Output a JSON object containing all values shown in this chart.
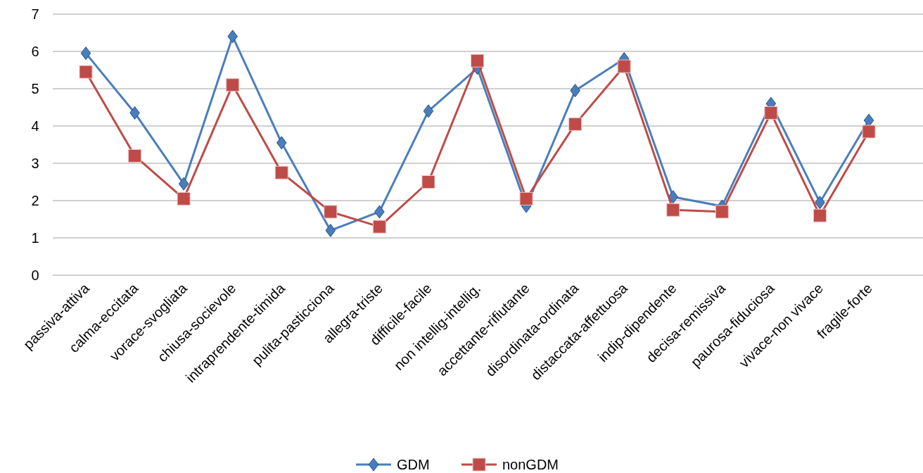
{
  "chart_data": {
    "type": "line",
    "categories": [
      "passiva-attiva",
      "calma-eccitata",
      "vorace-svogliata",
      "chiusa-socievole",
      "intraprendente-timida",
      "pulita-pasticciona",
      "allegra-triste",
      "difficile-facile",
      "non intellig-intellig.",
      "accettante-rifiutante",
      "disordinata-ordinata",
      "distaccata-affettuosa",
      "indip-dipendente",
      "decisa-remissiva",
      "paurosa-fiduciosa",
      "vivace-non vivace",
      "fragile-forte"
    ],
    "series": [
      {
        "name": "GDM",
        "color": "#4a7ebb",
        "marker": "diamond",
        "values": [
          5.95,
          4.35,
          2.45,
          6.4,
          3.55,
          1.2,
          1.7,
          4.4,
          5.55,
          1.85,
          4.95,
          5.8,
          2.1,
          1.85,
          4.6,
          1.95,
          4.15
        ]
      },
      {
        "name": "nonGDM",
        "color": "#be4b48",
        "marker": "square",
        "values": [
          5.45,
          3.2,
          2.05,
          5.1,
          2.75,
          1.7,
          1.3,
          2.5,
          5.75,
          2.05,
          4.05,
          5.6,
          1.75,
          1.7,
          4.35,
          1.6,
          3.85
        ]
      }
    ],
    "ylim": [
      0,
      7
    ],
    "yticks": [
      0,
      1,
      2,
      3,
      4,
      5,
      6,
      7
    ],
    "grid": "y",
    "legend": "bottom",
    "line_style": "solid"
  }
}
